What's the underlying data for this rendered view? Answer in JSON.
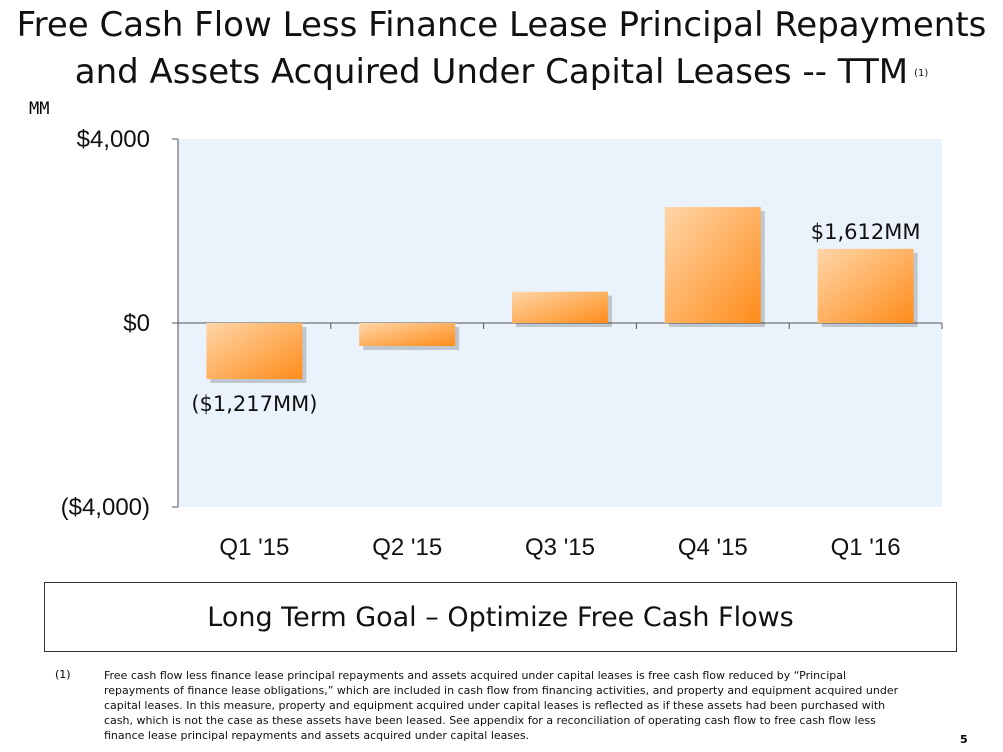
{
  "title": {
    "line1": "Free Cash Flow Less Finance Lease Principal Repayments",
    "line2": "and Assets Acquired Under Capital Leases -- TTM",
    "footnote_marker": "(1)"
  },
  "unit_label": "MM",
  "chart_data": {
    "type": "bar",
    "title": "Free Cash Flow Less Finance Lease Principal Repayments and Assets Acquired Under Capital Leases -- TTM",
    "ylabel": "MM",
    "categories": [
      "Q1 '15",
      "Q2 '15",
      "Q3 '15",
      "Q4 '15",
      "Q1 '16"
    ],
    "values": [
      -1217,
      -500,
      680,
      2520,
      1612
    ],
    "ylim": [
      -4000,
      4000
    ],
    "y_ticks": [
      {
        "value": 4000,
        "label": "$4,000"
      },
      {
        "value": 0,
        "label": "$0"
      },
      {
        "value": -4000,
        "label": "($4,000)"
      }
    ],
    "data_labels": [
      {
        "index": 0,
        "text": "($1,217MM)"
      },
      {
        "index": 4,
        "text": "$1,612MM"
      }
    ],
    "colors": {
      "bar_light": "#ffd6a8",
      "bar_dark": "#ff8c1a",
      "plot_bg": "#eaf2fb",
      "axis": "#555555"
    },
    "grid": false
  },
  "goal_box": {
    "text": "Long Term Goal – Optimize Free Cash Flows"
  },
  "footnote": {
    "marker": "(1)",
    "text": "Free cash flow less finance lease principal repayments and assets acquired under capital leases is free cash flow reduced by “Principal repayments of finance lease obligations,” which are included in cash flow from financing activities, and property and equipment acquired under capital leases. In this measure, property and equipment acquired under capital leases is reflected as if these assets had been purchased with cash, which is not the case as these assets have been leased. See appendix for a reconciliation of operating cash flow to free cash flow less finance lease principal repayments and assets acquired under capital leases."
  },
  "page_number": "5"
}
